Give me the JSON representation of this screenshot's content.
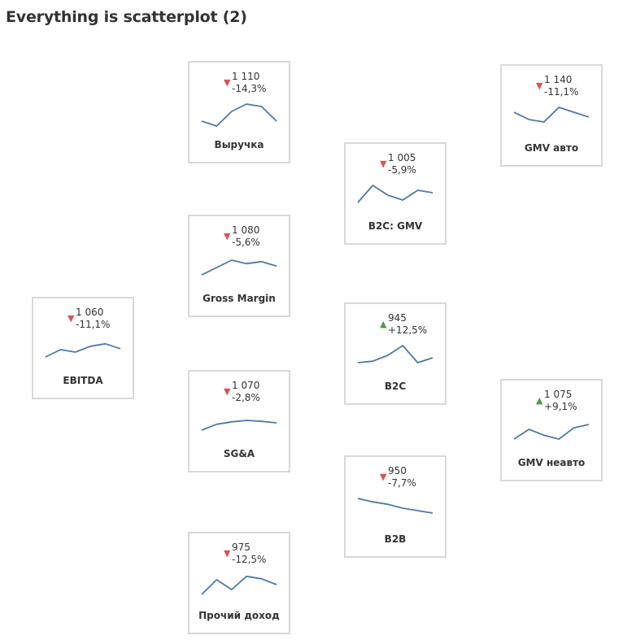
{
  "title": "Everything is scatterplot (2)",
  "chart_data": {
    "type": "line",
    "kpis": [
      {
        "id": "revenue",
        "name": "Выручка",
        "value": "1 110",
        "change": "-14,3%",
        "direction": "down",
        "spark": [
          3,
          2,
          5,
          6.5,
          6,
          3
        ]
      },
      {
        "id": "gmv-auto",
        "name": "GMV авто",
        "value": "1 140",
        "change": "-11,1%",
        "direction": "down",
        "spark": [
          5.5,
          4,
          3.5,
          6.5,
          5.5,
          4.5
        ]
      },
      {
        "id": "b2c-gmv",
        "name": "B2C: GMV",
        "value": "1 005",
        "change": "-5,9%",
        "direction": "down",
        "spark": [
          3,
          6.5,
          4.5,
          3.5,
          5.5,
          5
        ]
      },
      {
        "id": "gross-margin",
        "name": "Gross Margin",
        "value": "1 080",
        "change": "-5,6%",
        "direction": "down",
        "spark": [
          3,
          4.5,
          6,
          5.3,
          5.7,
          4.8
        ]
      },
      {
        "id": "ebitda",
        "name": "EBITDA",
        "value": "1 060",
        "change": "-11,1%",
        "direction": "down",
        "spark": [
          3,
          4.5,
          4,
          5.2,
          5.7,
          4.7
        ]
      },
      {
        "id": "b2c",
        "name": "B2C",
        "value": "945",
        "change": "+12,5%",
        "direction": "up",
        "spark": [
          3,
          3.3,
          4.5,
          6.5,
          3,
          4
        ]
      },
      {
        "id": "gmv-non-auto",
        "name": "GMV неавто",
        "value": "1 075",
        "change": "+9,1%",
        "direction": "up",
        "spark": [
          3,
          5,
          3.8,
          3,
          5.3,
          6
        ]
      },
      {
        "id": "sga",
        "name": "SG&A",
        "value": "1 070",
        "change": "-2,8%",
        "direction": "down",
        "spark": [
          3,
          4.2,
          4.7,
          5,
          4.8,
          4.5
        ]
      },
      {
        "id": "b2b",
        "name": "B2B",
        "value": "950",
        "change": "-7,7%",
        "direction": "down",
        "spark": [
          6.5,
          5.8,
          5.3,
          4.5,
          4,
          3.5
        ]
      },
      {
        "id": "other-income",
        "name": "Прочий доход",
        "value": "975",
        "change": "-12,5%",
        "direction": "down",
        "spark": [
          2.5,
          5.5,
          3.5,
          6.2,
          5.7,
          4.5
        ]
      }
    ]
  },
  "colors": {
    "line": "#4e79a7",
    "down": "#d9534f",
    "up": "#4e9a4e",
    "border": "#d9d9d9"
  }
}
